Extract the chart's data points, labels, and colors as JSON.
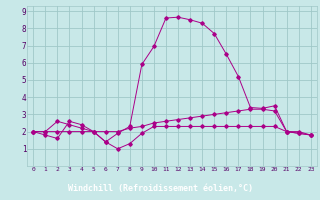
{
  "x": [
    0,
    1,
    2,
    3,
    4,
    5,
    6,
    7,
    8,
    9,
    10,
    11,
    12,
    13,
    14,
    15,
    16,
    17,
    18,
    19,
    20,
    21,
    22,
    23
  ],
  "line1": [
    2.0,
    1.8,
    1.6,
    2.6,
    2.4,
    2.0,
    1.4,
    1.0,
    1.3,
    1.9,
    2.3,
    2.3,
    2.3,
    2.3,
    2.3,
    2.3,
    2.3,
    2.3,
    2.3,
    2.3,
    2.3,
    2.0,
    1.9,
    1.8
  ],
  "line2": [
    2.0,
    2.0,
    2.0,
    2.0,
    2.0,
    2.0,
    2.0,
    2.0,
    2.2,
    2.3,
    2.5,
    2.6,
    2.7,
    2.8,
    2.9,
    3.0,
    3.1,
    3.2,
    3.3,
    3.3,
    3.2,
    2.0,
    2.0,
    1.8
  ],
  "line3": [
    2.0,
    2.0,
    2.6,
    2.4,
    2.2,
    2.0,
    1.4,
    1.9,
    2.3,
    5.9,
    6.95,
    8.6,
    8.65,
    8.5,
    8.3,
    7.7,
    6.5,
    5.2,
    3.4,
    3.35,
    3.5,
    2.0,
    1.9,
    1.8
  ],
  "bg_color": "#c8e8e8",
  "grid_color": "#a0c8c8",
  "line_color": "#aa0088",
  "xlabel": "Windchill (Refroidissement éolien,°C)",
  "xlabel_bg": "#6600aa",
  "xlabel_fg": "#ffffff",
  "xlim": [
    0,
    23
  ],
  "ylim": [
    0,
    9
  ],
  "yticks": [
    1,
    2,
    3,
    4,
    5,
    6,
    7,
    8,
    9
  ],
  "xticks": [
    0,
    1,
    2,
    3,
    4,
    5,
    6,
    7,
    8,
    9,
    10,
    11,
    12,
    13,
    14,
    15,
    16,
    17,
    18,
    19,
    20,
    21,
    22,
    23
  ]
}
